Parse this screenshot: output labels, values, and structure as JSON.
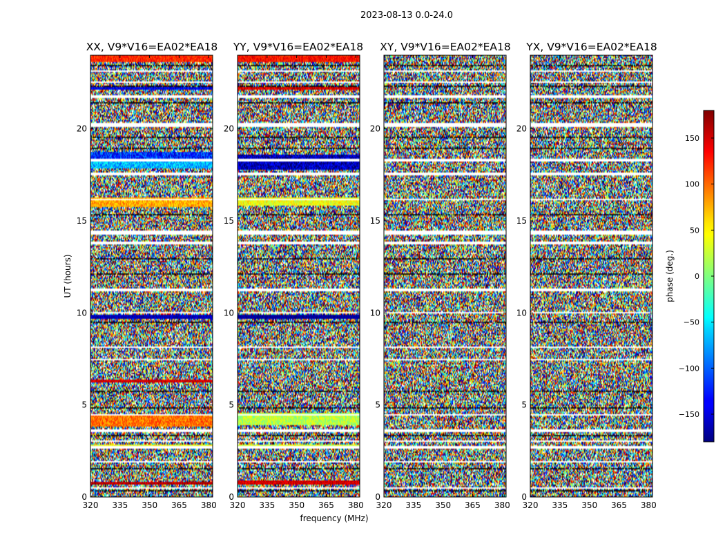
{
  "suptitle": "2023-08-13 0.0-24.0",
  "chart_data": {
    "type": "heatmap",
    "xlabel": "frequency (MHz)",
    "ylabel": "UT (hours)",
    "xlim": [
      320,
      382
    ],
    "ylim": [
      0,
      24
    ],
    "x_ticks": [
      320,
      335,
      350,
      365,
      380
    ],
    "y_ticks": [
      0,
      5,
      10,
      15,
      20
    ],
    "panels": [
      {
        "title": "XX, V9*V16=EA02*EA18"
      },
      {
        "title": "YY, V9*V16=EA02*EA18"
      },
      {
        "title": "XY, V9*V16=EA02*EA18"
      },
      {
        "title": "YX, V9*V16=EA02*EA18"
      }
    ],
    "colorbar": {
      "label": "phase (deg.)",
      "range": [
        -180,
        180
      ],
      "ticks": [
        -150,
        -100,
        -50,
        0,
        50,
        100,
        150
      ],
      "tick_labels": [
        "−150",
        "−100",
        "−50",
        "0",
        "50",
        "100",
        "150"
      ],
      "colormap": "jet"
    },
    "blank_bands_hours": [
      [
        0.45,
        0.55
      ],
      [
        1.85,
        1.95
      ],
      [
        2.6,
        2.75
      ],
      [
        3.0,
        3.1
      ],
      [
        3.55,
        3.65
      ],
      [
        4.45,
        4.5
      ],
      [
        7.45,
        7.5
      ],
      [
        8.1,
        8.15
      ],
      [
        9.95,
        10.05
      ],
      [
        11.2,
        11.3
      ],
      [
        13.75,
        13.85
      ],
      [
        14.25,
        14.45
      ],
      [
        16.1,
        16.2
      ],
      [
        17.5,
        17.6
      ],
      [
        18.25,
        18.35
      ],
      [
        20.1,
        20.35
      ],
      [
        21.7,
        21.8
      ],
      [
        22.5,
        22.6
      ],
      [
        23.1,
        23.2
      ]
    ],
    "dark_bands_hours": [
      [
        0.3,
        0.35
      ],
      [
        1.5,
        1.55
      ],
      [
        3.3,
        3.35
      ],
      [
        4.8,
        4.85
      ],
      [
        5.7,
        5.75
      ],
      [
        9.05,
        9.1
      ],
      [
        9.45,
        9.5
      ],
      [
        12.1,
        12.15
      ],
      [
        12.9,
        12.95
      ],
      [
        15.3,
        15.35
      ],
      [
        17.0,
        17.05
      ],
      [
        18.9,
        18.95
      ],
      [
        19.5,
        19.55
      ],
      [
        21.4,
        21.45
      ],
      [
        22.3,
        22.35
      ],
      [
        23.4,
        23.45
      ]
    ],
    "coherent_bands": [
      {
        "panel": 0,
        "hours": [
          23.6,
          24.0
        ],
        "phase_deg": 120,
        "spread_deg": 25
      },
      {
        "panel": 0,
        "hours": [
          22.1,
          22.25
        ],
        "phase_deg": -140,
        "spread_deg": 30
      },
      {
        "panel": 0,
        "hours": [
          18.35,
          18.75
        ],
        "phase_deg": -120,
        "spread_deg": 45
      },
      {
        "panel": 0,
        "hours": [
          17.85,
          18.25
        ],
        "phase_deg": -70,
        "spread_deg": 40
      },
      {
        "panel": 0,
        "hours": [
          15.75,
          16.3
        ],
        "phase_deg": 75,
        "spread_deg": 30
      },
      {
        "panel": 0,
        "hours": [
          9.7,
          9.9
        ],
        "phase_deg": -160,
        "spread_deg": 20
      },
      {
        "panel": 0,
        "hours": [
          6.2,
          6.35
        ],
        "phase_deg": 150,
        "spread_deg": 20
      },
      {
        "panel": 0,
        "hours": [
          3.85,
          4.5
        ],
        "phase_deg": 95,
        "spread_deg": 30
      },
      {
        "panel": 0,
        "hours": [
          2.65,
          2.85
        ],
        "phase_deg": 40,
        "spread_deg": 30
      },
      {
        "panel": 0,
        "hours": [
          0.7,
          0.85
        ],
        "phase_deg": 160,
        "spread_deg": 20
      },
      {
        "panel": 1,
        "hours": [
          23.6,
          24.0
        ],
        "phase_deg": 130,
        "spread_deg": 25
      },
      {
        "panel": 1,
        "hours": [
          22.1,
          22.25
        ],
        "phase_deg": 150,
        "spread_deg": 30
      },
      {
        "panel": 1,
        "hours": [
          17.8,
          18.6
        ],
        "phase_deg": -160,
        "spread_deg": 40
      },
      {
        "panel": 1,
        "hours": [
          15.8,
          16.3
        ],
        "phase_deg": 40,
        "spread_deg": 30
      },
      {
        "panel": 1,
        "hours": [
          9.7,
          9.9
        ],
        "phase_deg": -170,
        "spread_deg": 15
      },
      {
        "panel": 1,
        "hours": [
          3.9,
          4.6
        ],
        "phase_deg": 20,
        "spread_deg": 30
      },
      {
        "panel": 1,
        "hours": [
          2.65,
          2.85
        ],
        "phase_deg": 30,
        "spread_deg": 30
      },
      {
        "panel": 1,
        "hours": [
          0.7,
          0.9
        ],
        "phase_deg": 150,
        "spread_deg": 20
      }
    ]
  }
}
